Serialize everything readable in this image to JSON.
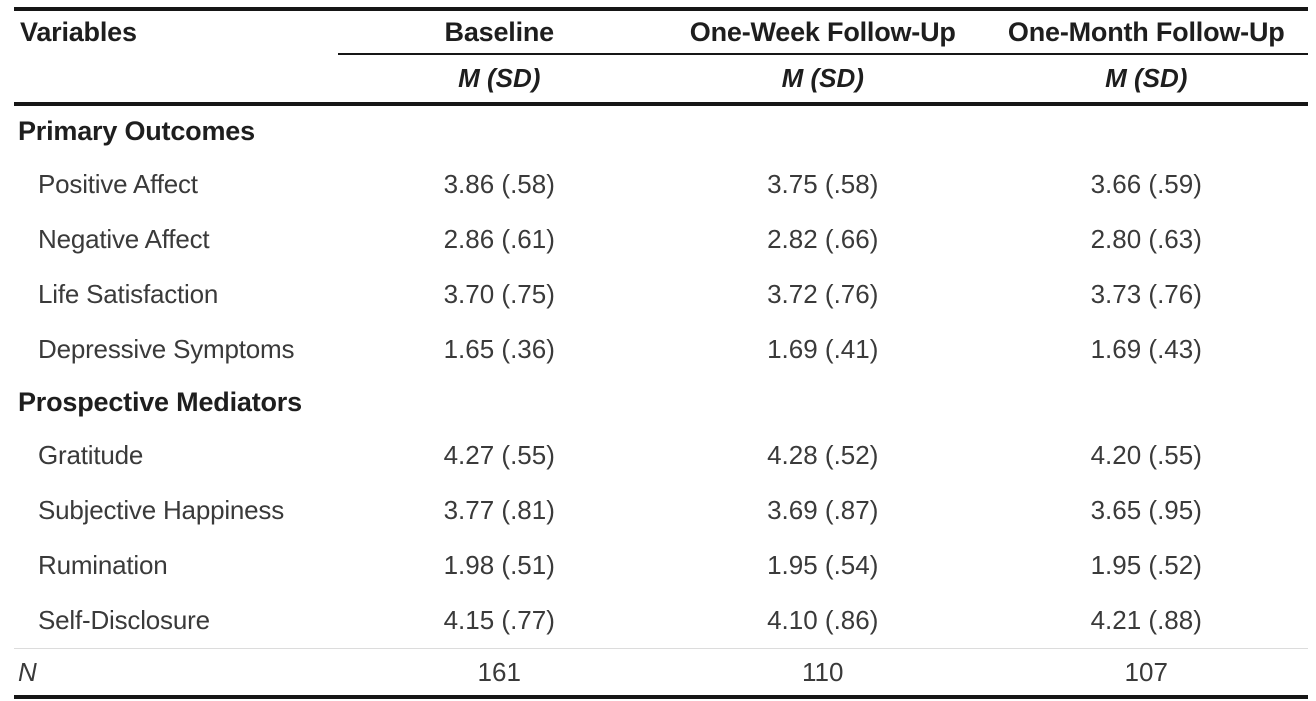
{
  "page": {
    "background": "#ffffff",
    "rule_color": "#161616",
    "heading_color": "#1e1e1e",
    "body_text_color": "#3a3a3a"
  },
  "table": {
    "title_column_header": "Variables",
    "group_headers": [
      "Baseline",
      "One-Week Follow-Up",
      "One-Month Follow-Up"
    ],
    "stat_header": "M (SD)",
    "sections": [
      {
        "title": "Primary Outcomes",
        "rows": [
          {
            "label": "Positive Affect",
            "values": [
              "3.86 (.58)",
              "3.75 (.58)",
              "3.66 (.59)"
            ]
          },
          {
            "label": "Negative Affect",
            "values": [
              "2.86 (.61)",
              "2.82 (.66)",
              "2.80 (.63)"
            ]
          },
          {
            "label": "Life Satisfaction",
            "values": [
              "3.70 (.75)",
              "3.72 (.76)",
              "3.73 (.76)"
            ]
          },
          {
            "label": "Depressive Symptoms",
            "values": [
              "1.65 (.36)",
              "1.69 (.41)",
              "1.69 (.43)"
            ]
          }
        ]
      },
      {
        "title": "Prospective Mediators",
        "rows": [
          {
            "label": "Gratitude",
            "values": [
              "4.27 (.55)",
              "4.28 (.52)",
              "4.20 (.55)"
            ]
          },
          {
            "label": "Subjective Happiness",
            "values": [
              "3.77 (.81)",
              "3.69 (.87)",
              "3.65 (.95)"
            ]
          },
          {
            "label": "Rumination",
            "values": [
              "1.98 (.51)",
              "1.95 (.54)",
              "1.95 (.52)"
            ]
          },
          {
            "label": "Self-Disclosure",
            "values": [
              "4.15 (.77)",
              "4.10 (.86)",
              "4.21 (.88)"
            ]
          }
        ]
      }
    ],
    "sample_size_row": {
      "label": "N",
      "values": [
        "161",
        "110",
        "107"
      ]
    }
  }
}
